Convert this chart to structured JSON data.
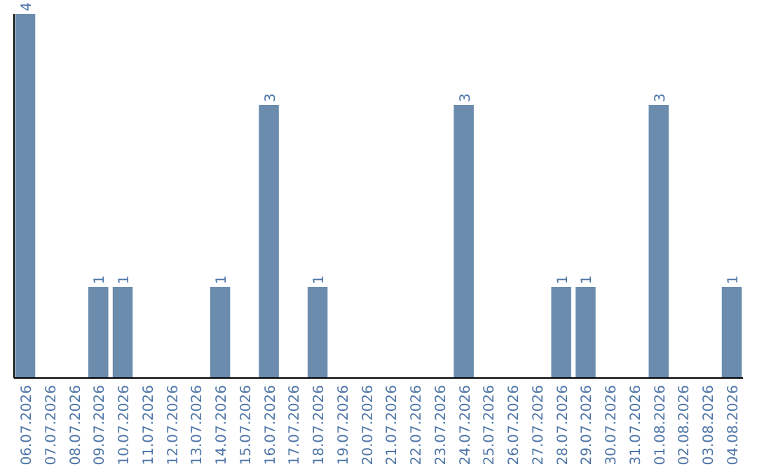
{
  "chart_data": {
    "type": "bar",
    "categories": [
      "06.07.2026",
      "07.07.2026",
      "08.07.2026",
      "09.07.2026",
      "10.07.2026",
      "11.07.2026",
      "12.07.2026",
      "13.07.2026",
      "14.07.2026",
      "15.07.2026",
      "16.07.2026",
      "17.07.2026",
      "18.07.2026",
      "19.07.2026",
      "20.07.2026",
      "21.07.2026",
      "22.07.2026",
      "23.07.2026",
      "24.07.2026",
      "25.07.2026",
      "26.07.2026",
      "27.07.2026",
      "28.07.2026",
      "29.07.2026",
      "30.07.2026",
      "31.07.2026",
      "01.08.2026",
      "02.08.2026",
      "03.08.2026",
      "04.08.2026"
    ],
    "values": [
      4,
      0,
      0,
      1,
      1,
      0,
      0,
      0,
      1,
      0,
      3,
      0,
      1,
      0,
      0,
      0,
      0,
      0,
      3,
      0,
      0,
      0,
      1,
      1,
      0,
      0,
      3,
      0,
      0,
      1
    ],
    "value_labels": [
      "4",
      null,
      null,
      "1",
      "1",
      null,
      null,
      null,
      "1",
      null,
      "3",
      null,
      "1",
      null,
      null,
      null,
      null,
      null,
      "3",
      null,
      null,
      null,
      "1",
      "1",
      null,
      null,
      "3",
      null,
      null,
      "1"
    ],
    "color": "#6b8cad"
  }
}
